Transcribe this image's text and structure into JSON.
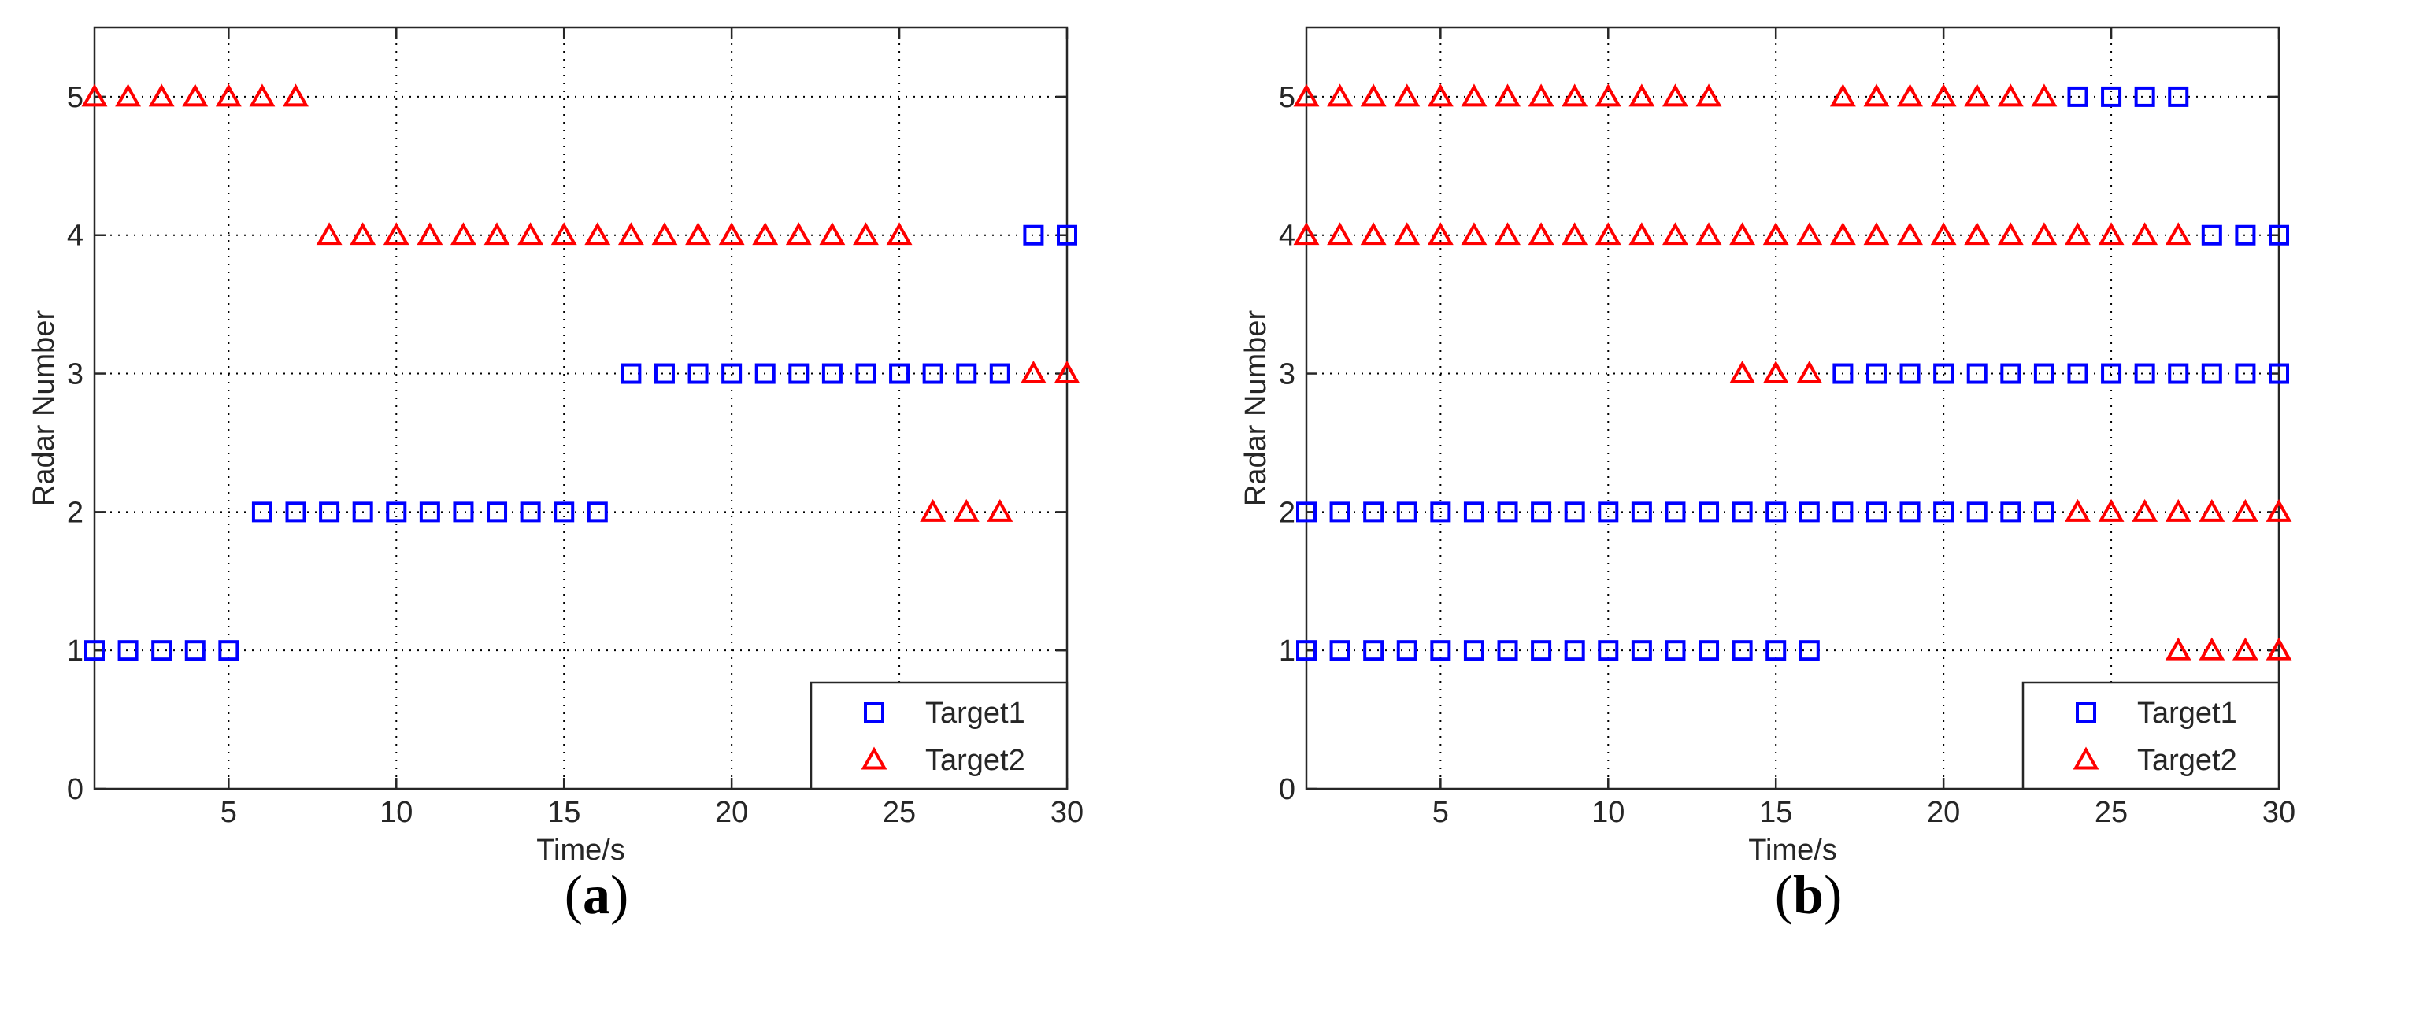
{
  "chart_data": [
    {
      "panel_caption": "(a)",
      "type": "scatter",
      "xlabel": "Time/s",
      "ylabel": "Radar Number",
      "xlim": [
        1,
        30
      ],
      "ylim": [
        0,
        5.5
      ],
      "xticks": [
        5,
        10,
        15,
        20,
        25,
        30
      ],
      "yticks": [
        0,
        1,
        2,
        3,
        4,
        5
      ],
      "grid": true,
      "legend_position": "bottom-right",
      "series": [
        {
          "name": "Target1",
          "marker": "square",
          "color": "#0000ff",
          "points": [
            [
              1,
              1
            ],
            [
              2,
              1
            ],
            [
              3,
              1
            ],
            [
              4,
              1
            ],
            [
              5,
              1
            ],
            [
              6,
              2
            ],
            [
              7,
              2
            ],
            [
              8,
              2
            ],
            [
              9,
              2
            ],
            [
              10,
              2
            ],
            [
              11,
              2
            ],
            [
              12,
              2
            ],
            [
              13,
              2
            ],
            [
              14,
              2
            ],
            [
              15,
              2
            ],
            [
              16,
              2
            ],
            [
              17,
              3
            ],
            [
              18,
              3
            ],
            [
              19,
              3
            ],
            [
              20,
              3
            ],
            [
              21,
              3
            ],
            [
              22,
              3
            ],
            [
              23,
              3
            ],
            [
              24,
              3
            ],
            [
              25,
              3
            ],
            [
              26,
              3
            ],
            [
              27,
              3
            ],
            [
              28,
              3
            ],
            [
              29,
              4
            ],
            [
              30,
              4
            ]
          ]
        },
        {
          "name": "Target2",
          "marker": "triangle",
          "color": "#ff0000",
          "points": [
            [
              1,
              5
            ],
            [
              2,
              5
            ],
            [
              3,
              5
            ],
            [
              4,
              5
            ],
            [
              5,
              5
            ],
            [
              6,
              5
            ],
            [
              7,
              5
            ],
            [
              8,
              4
            ],
            [
              9,
              4
            ],
            [
              10,
              4
            ],
            [
              11,
              4
            ],
            [
              12,
              4
            ],
            [
              13,
              4
            ],
            [
              14,
              4
            ],
            [
              15,
              4
            ],
            [
              16,
              4
            ],
            [
              17,
              4
            ],
            [
              18,
              4
            ],
            [
              19,
              4
            ],
            [
              20,
              4
            ],
            [
              21,
              4
            ],
            [
              22,
              4
            ],
            [
              23,
              4
            ],
            [
              24,
              4
            ],
            [
              25,
              4
            ],
            [
              26,
              2
            ],
            [
              27,
              2
            ],
            [
              28,
              2
            ],
            [
              29,
              3
            ],
            [
              30,
              3
            ]
          ]
        }
      ]
    },
    {
      "panel_caption": "(b)",
      "type": "scatter",
      "xlabel": "Time/s",
      "ylabel": "Radar Number",
      "xlim": [
        1,
        30
      ],
      "ylim": [
        0,
        5.5
      ],
      "xticks": [
        5,
        10,
        15,
        20,
        25,
        30
      ],
      "yticks": [
        0,
        1,
        2,
        3,
        4,
        5
      ],
      "grid": true,
      "legend_position": "bottom-right",
      "series": [
        {
          "name": "Target1",
          "marker": "square",
          "color": "#0000ff",
          "points": [
            [
              1,
              1
            ],
            [
              2,
              1
            ],
            [
              3,
              1
            ],
            [
              4,
              1
            ],
            [
              5,
              1
            ],
            [
              6,
              1
            ],
            [
              7,
              1
            ],
            [
              8,
              1
            ],
            [
              9,
              1
            ],
            [
              10,
              1
            ],
            [
              11,
              1
            ],
            [
              12,
              1
            ],
            [
              13,
              1
            ],
            [
              14,
              1
            ],
            [
              15,
              1
            ],
            [
              16,
              1
            ],
            [
              1,
              2
            ],
            [
              2,
              2
            ],
            [
              3,
              2
            ],
            [
              4,
              2
            ],
            [
              5,
              2
            ],
            [
              6,
              2
            ],
            [
              7,
              2
            ],
            [
              8,
              2
            ],
            [
              9,
              2
            ],
            [
              10,
              2
            ],
            [
              11,
              2
            ],
            [
              12,
              2
            ],
            [
              13,
              2
            ],
            [
              14,
              2
            ],
            [
              15,
              2
            ],
            [
              16,
              2
            ],
            [
              17,
              2
            ],
            [
              18,
              2
            ],
            [
              19,
              2
            ],
            [
              20,
              2
            ],
            [
              21,
              2
            ],
            [
              22,
              2
            ],
            [
              23,
              2
            ],
            [
              17,
              3
            ],
            [
              18,
              3
            ],
            [
              19,
              3
            ],
            [
              20,
              3
            ],
            [
              21,
              3
            ],
            [
              22,
              3
            ],
            [
              23,
              3
            ],
            [
              24,
              3
            ],
            [
              25,
              3
            ],
            [
              26,
              3
            ],
            [
              27,
              3
            ],
            [
              28,
              3
            ],
            [
              29,
              3
            ],
            [
              30,
              3
            ],
            [
              28,
              4
            ],
            [
              29,
              4
            ],
            [
              30,
              4
            ],
            [
              24,
              5
            ],
            [
              25,
              5
            ],
            [
              26,
              5
            ],
            [
              27,
              5
            ]
          ]
        },
        {
          "name": "Target2",
          "marker": "triangle",
          "color": "#ff0000",
          "points": [
            [
              1,
              5
            ],
            [
              2,
              5
            ],
            [
              3,
              5
            ],
            [
              4,
              5
            ],
            [
              5,
              5
            ],
            [
              6,
              5
            ],
            [
              7,
              5
            ],
            [
              8,
              5
            ],
            [
              9,
              5
            ],
            [
              10,
              5
            ],
            [
              11,
              5
            ],
            [
              12,
              5
            ],
            [
              13,
              5
            ],
            [
              17,
              5
            ],
            [
              18,
              5
            ],
            [
              19,
              5
            ],
            [
              20,
              5
            ],
            [
              21,
              5
            ],
            [
              22,
              5
            ],
            [
              23,
              5
            ],
            [
              1,
              4
            ],
            [
              2,
              4
            ],
            [
              3,
              4
            ],
            [
              4,
              4
            ],
            [
              5,
              4
            ],
            [
              6,
              4
            ],
            [
              7,
              4
            ],
            [
              8,
              4
            ],
            [
              9,
              4
            ],
            [
              10,
              4
            ],
            [
              11,
              4
            ],
            [
              12,
              4
            ],
            [
              13,
              4
            ],
            [
              14,
              4
            ],
            [
              15,
              4
            ],
            [
              16,
              4
            ],
            [
              17,
              4
            ],
            [
              18,
              4
            ],
            [
              19,
              4
            ],
            [
              20,
              4
            ],
            [
              21,
              4
            ],
            [
              22,
              4
            ],
            [
              23,
              4
            ],
            [
              24,
              4
            ],
            [
              25,
              4
            ],
            [
              26,
              4
            ],
            [
              27,
              4
            ],
            [
              14,
              3
            ],
            [
              15,
              3
            ],
            [
              16,
              3
            ],
            [
              24,
              2
            ],
            [
              25,
              2
            ],
            [
              26,
              2
            ],
            [
              27,
              2
            ],
            [
              28,
              2
            ],
            [
              29,
              2
            ],
            [
              30,
              2
            ],
            [
              27,
              1
            ],
            [
              28,
              1
            ],
            [
              29,
              1
            ],
            [
              30,
              1
            ]
          ]
        }
      ]
    }
  ]
}
